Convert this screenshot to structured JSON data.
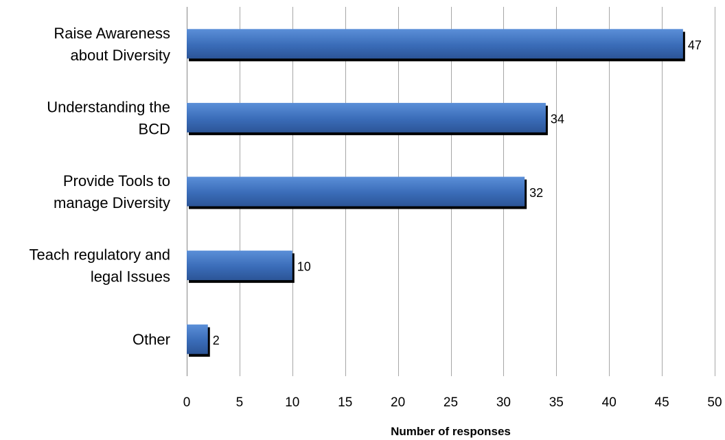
{
  "chart_data": {
    "type": "bar",
    "orientation": "horizontal",
    "categories": [
      [
        "Raise Awareness",
        "about Diversity"
      ],
      [
        "Understanding the",
        "BCD"
      ],
      [
        "Provide Tools to",
        "manage Diversity"
      ],
      [
        "Teach regulatory and",
        "legal Issues"
      ],
      [
        "Other"
      ]
    ],
    "values": [
      47,
      34,
      32,
      10,
      2
    ],
    "xlabel": "Number of responses",
    "ylabel": "",
    "xlim": [
      0,
      50
    ],
    "xticks": [
      "0",
      "5",
      "10",
      "15",
      "20",
      "25",
      "30",
      "35",
      "40",
      "45",
      "50"
    ],
    "grid": true,
    "legend": "none",
    "bar_color": "#3a6cb8",
    "bar_shadow_color": "#000000"
  }
}
